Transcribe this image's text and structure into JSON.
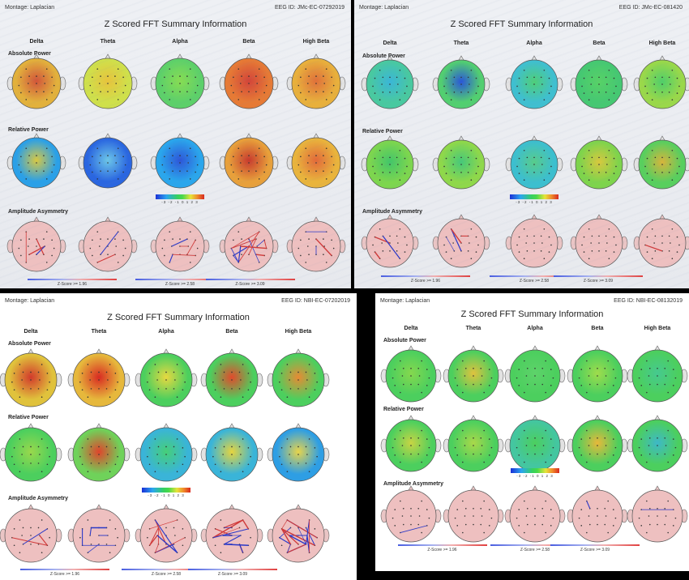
{
  "panels": [
    {
      "id": "top-left",
      "montage": "Montage:  Laplacian",
      "title": "Z Scored FFT Summary Information",
      "eeg_id": "EEG ID:  JMc-EC-07292019",
      "bands": [
        "Delta",
        "Theta",
        "Alpha",
        "Beta",
        "High Beta"
      ],
      "sections": {
        "absolute": "Absolute Power",
        "relative": "Relative Power",
        "asymmetry": "Amplitude Asymmetry"
      },
      "colorbar_ticks": "-3 -2 -1 0 1 2 3",
      "zscores": [
        "Z-Score >= 1.96",
        "Z-Score >= 2.58",
        "Z-Score >= 3.09"
      ],
      "absolute_colors": [
        [
          "#e2b13c",
          "#d2553a"
        ],
        [
          "#cfe04b",
          "#e8c33c"
        ],
        [
          "#5dd06a",
          "#88dd52"
        ],
        [
          "#e67a35",
          "#d2443a"
        ],
        [
          "#e8b03c",
          "#e0703a"
        ]
      ],
      "relative_colors": [
        [
          "#2aa0e8",
          "#d8c842"
        ],
        [
          "#2a66e0",
          "#6dc7e8"
        ],
        [
          "#2aa6ec",
          "#2e55d8"
        ],
        [
          "#e8a03a",
          "#c73a2e"
        ],
        [
          "#e9b43c",
          "#e2693a"
        ]
      ],
      "asymmetry_lines": [
        4,
        2,
        6,
        14,
        3
      ]
    },
    {
      "id": "top-right",
      "montage": "Montage:  Laplacian",
      "title": "Z Scored FFT Summary Information",
      "eeg_id": "EEG ID:  JMc-EC-081420",
      "bands": [
        "Delta",
        "Theta",
        "Alpha",
        "Beta",
        "High Beta"
      ],
      "sections": {
        "absolute": "Absolute Power",
        "relative": "Relative Power",
        "asymmetry": "Amplitude Asymmetry"
      },
      "colorbar_ticks": "-3 -2 -1 0 1 2 3",
      "zscores": [
        "Z-Score >= 1.96",
        "Z-Score >= 2.58",
        "Z-Score >= 3.09"
      ],
      "absolute_colors": [
        [
          "#49c9a0",
          "#3ab6d8"
        ],
        [
          "#52cf70",
          "#2a56d8"
        ],
        [
          "#3fbfd0",
          "#4fcf78"
        ],
        [
          "#45c872",
          "#58d266"
        ],
        [
          "#9ad84a",
          "#4fcf6a"
        ]
      ],
      "relative_colors": [
        [
          "#7dd64e",
          "#42c66a"
        ],
        [
          "#8fd84a",
          "#45c97a"
        ],
        [
          "#3cbfcf",
          "#58cc8a"
        ],
        [
          "#7ed44c",
          "#d8c83e"
        ],
        [
          "#58cf5e",
          "#d7b43c"
        ]
      ],
      "asymmetry_lines": [
        3,
        4,
        0,
        1,
        1
      ]
    },
    {
      "id": "bottom-left",
      "montage": "Montage:  Laplacian",
      "title": "Z Scored FFT Summary Information",
      "eeg_id": "EEG ID:  NBI-EC-07202019",
      "bands": [
        "Delta",
        "Theta",
        "Alpha",
        "Beta",
        "High Beta"
      ],
      "sections": {
        "absolute": "Absolute Power",
        "relative": "Relative Power",
        "asymmetry": "Amplitude Asymmetry"
      },
      "colorbar_ticks": "-3 -2 -1 0 1 2 3",
      "zscores": [
        "Z-Score >= 1.96",
        "Z-Score >= 2.58",
        "Z-Score >= 3.09"
      ],
      "absolute_colors": [
        [
          "#e0c23c",
          "#d23a2c"
        ],
        [
          "#e6b83c",
          "#d82a22"
        ],
        [
          "#4ccf5e",
          "#e8d840"
        ],
        [
          "#4ccf5e",
          "#e24a2c"
        ],
        [
          "#4ccf5e",
          "#e88a34"
        ]
      ],
      "relative_colors": [
        [
          "#4ccf5e",
          "#9ad84c"
        ],
        [
          "#6fd25a",
          "#e0442c"
        ],
        [
          "#3ab4d8",
          "#46cf78"
        ],
        [
          "#3ab4d8",
          "#e6d43e"
        ],
        [
          "#2e9ee4",
          "#e8d44a"
        ]
      ],
      "asymmetry_lines": [
        3,
        6,
        10,
        16,
        22
      ]
    },
    {
      "id": "bottom-right",
      "montage": "Montage:  Laplacian",
      "title": "Z Scored FFT Summary Information",
      "eeg_id": "EEG ID:  NBI-EC-08132019",
      "bands": [
        "Delta",
        "Theta",
        "Alpha",
        "Beta",
        "High Beta"
      ],
      "sections": {
        "absolute": "Absolute Power",
        "relative": "Relative Power",
        "asymmetry": "Amplitude Asymmetry"
      },
      "colorbar_ticks": "-3 -2 -1 0 1 2 3",
      "zscores": [
        "Z-Score >= 1.96",
        "Z-Score >= 2.58",
        "Z-Score >= 3.09"
      ],
      "absolute_colors": [
        [
          "#4ccf5e",
          "#86d84e"
        ],
        [
          "#4ccf5e",
          "#e0c23e"
        ],
        [
          "#4ccf5e",
          "#5ed26a"
        ],
        [
          "#4ccf5e",
          "#a0dc4c"
        ],
        [
          "#4ccf5e",
          "#46c990"
        ]
      ],
      "relative_colors": [
        [
          "#4ccf5e",
          "#c8d444"
        ],
        [
          "#4ccf5e",
          "#aad84a"
        ],
        [
          "#44c6a0",
          "#4ccf5e"
        ],
        [
          "#4ccf5e",
          "#e8b83a"
        ],
        [
          "#4ccf5e",
          "#3eb8c8"
        ]
      ],
      "asymmetry_lines": [
        1,
        0,
        0,
        1,
        1
      ]
    }
  ]
}
